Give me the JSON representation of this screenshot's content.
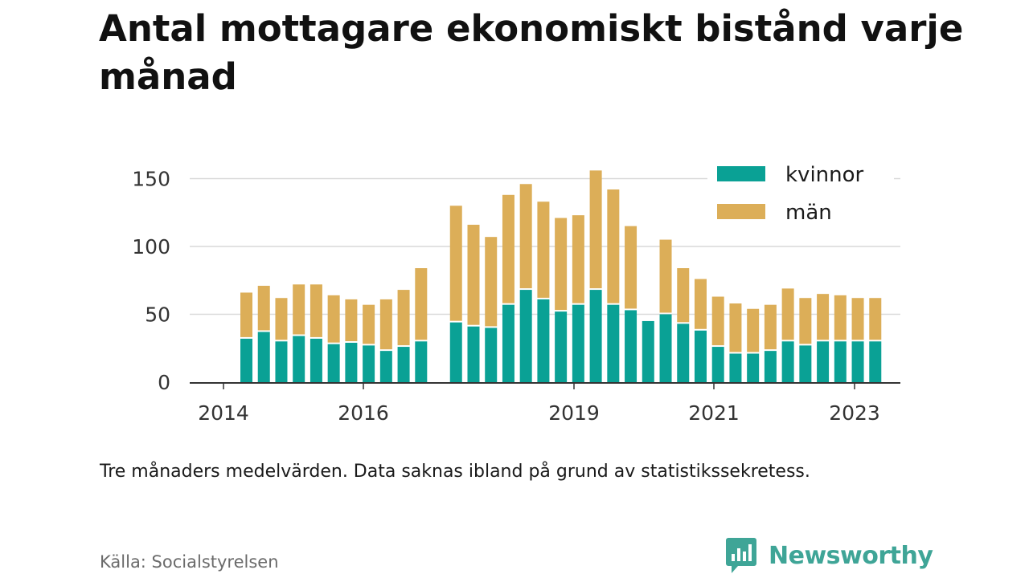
{
  "title": "Antal mottagare ekonomiskt bistånd varje månad",
  "note": "Tre månaders medelvärden. Data saknas ibland på grund av statistikssekretess.",
  "source": "Källa: Socialstyrelsen",
  "brand": {
    "name": "Newsworthy",
    "icon": "newsworthy-logo-icon",
    "color": "#3fa597"
  },
  "chart_data": {
    "type": "bar",
    "stacked": true,
    "ylim": [
      0,
      160
    ],
    "yticks": [
      0,
      50,
      100,
      150
    ],
    "x_tick_labels": [
      "2014",
      "2016",
      "2019",
      "2021",
      "2023"
    ],
    "grid": true,
    "legend_position": "top-right",
    "x": [
      "2014-Q3",
      "2014-Q4",
      "2015-Q1",
      "2015-Q2",
      "2015-Q3",
      "2015-Q4",
      "2016-Q1",
      "2016-Q2",
      "2016-Q3",
      "2016-Q4",
      "2017-Q1",
      "2017-Q2",
      "2017-Q3",
      "2017-Q4",
      "2018-Q1",
      "2018-Q2",
      "2018-Q3",
      "2018-Q4",
      "2019-Q1",
      "2019-Q2",
      "2019-Q3",
      "2019-Q4",
      "2020-Q1",
      "2020-Q2",
      "2020-Q3",
      "2020-Q4",
      "2021-Q1",
      "2021-Q2",
      "2021-Q3",
      "2021-Q4",
      "2022-Q1",
      "2022-Q2",
      "2022-Q3",
      "2022-Q4",
      "2023-Q1",
      "2023-Q2",
      "2023-Q3"
    ],
    "series": [
      {
        "name": "kvinnor",
        "color": "#0aa195",
        "values": [
          32,
          37,
          30,
          34,
          32,
          28,
          29,
          27,
          23,
          26,
          30,
          null,
          44,
          41,
          40,
          57,
          68,
          61,
          52,
          57,
          68,
          57,
          53,
          45,
          50,
          43,
          38,
          26,
          21,
          21,
          23,
          30,
          27,
          30,
          30,
          30,
          30
        ]
      },
      {
        "name": "män",
        "color": "#dcae58",
        "values": [
          34,
          34,
          32,
          38,
          40,
          36,
          32,
          30,
          38,
          42,
          54,
          null,
          86,
          75,
          67,
          81,
          78,
          72,
          69,
          66,
          88,
          85,
          62,
          null,
          55,
          41,
          38,
          37,
          37,
          33,
          34,
          39,
          35,
          35,
          34,
          32,
          32
        ]
      }
    ]
  }
}
